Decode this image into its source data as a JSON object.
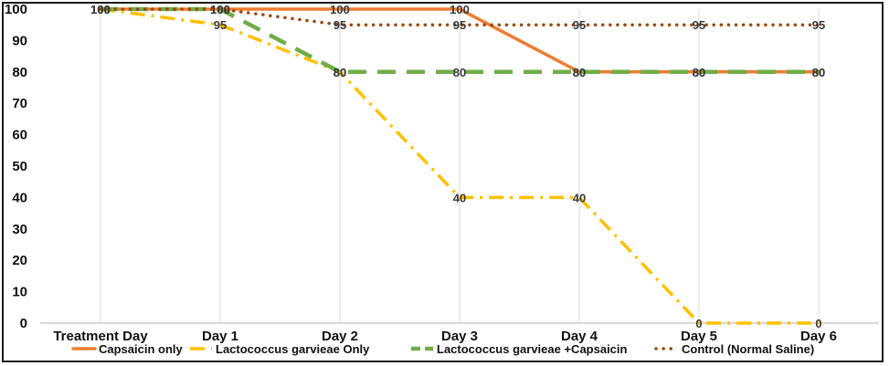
{
  "chart_data": {
    "type": "line",
    "title": "",
    "xlabel": "",
    "ylabel": "",
    "categories": [
      "Treatment Day",
      "Day 1",
      "Day 2",
      "Day 3",
      "Day 4",
      "Day 5",
      "Day 6"
    ],
    "ylim": [
      0,
      100
    ],
    "yticks": [
      0,
      10,
      20,
      30,
      40,
      50,
      60,
      70,
      80,
      90,
      100
    ],
    "grid": "vertical",
    "legend_position": "bottom",
    "series": [
      {
        "name": "Capsaicin only",
        "values": [
          100,
          100,
          100,
          100,
          80,
          80,
          80
        ],
        "labels": [
          "100",
          "100",
          "100",
          "100",
          "80",
          "80",
          "80"
        ],
        "color": "#ED7D31",
        "style": "solid"
      },
      {
        "name": "Lactococcus garvieae Only",
        "values": [
          100,
          95,
          80,
          40,
          40,
          0,
          0
        ],
        "labels": [
          "100",
          "95",
          "80",
          "40",
          "40",
          "0",
          "0"
        ],
        "color": "#FFC000",
        "style": "dashdot"
      },
      {
        "name": "Lactococcus garvieae +Capsaicin",
        "values": [
          100,
          100,
          80,
          80,
          80,
          80,
          80
        ],
        "labels": [
          "100",
          "100",
          "80",
          "80",
          "80",
          "80",
          "80"
        ],
        "color": "#70AD47",
        "style": "dash"
      },
      {
        "name": "Control (Normal Saline)",
        "values": [
          100,
          100,
          95,
          95,
          95,
          95,
          95
        ],
        "labels": [
          "100",
          "100",
          "95",
          "95",
          "95",
          "95",
          "95"
        ],
        "color": "#9E480E",
        "style": "dot"
      }
    ]
  }
}
